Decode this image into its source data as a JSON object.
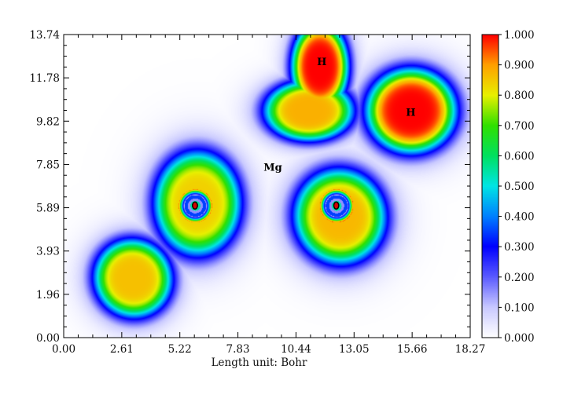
{
  "chart_data": {
    "type": "heatmap",
    "title": "",
    "xlabel": "Length unit: Bohr",
    "ylabel": "",
    "xlim": [
      0.0,
      18.27
    ],
    "ylim": [
      0.0,
      13.74
    ],
    "x_ticks": [
      "0.00",
      "2.61",
      "5.22",
      "7.83",
      "10.44",
      "13.05",
      "15.66",
      "18.27"
    ],
    "y_ticks": [
      "0.00",
      "1.96",
      "3.93",
      "5.89",
      "7.85",
      "9.82",
      "11.78",
      "13.74"
    ],
    "colorbar": {
      "range": [
        0.0,
        1.0
      ],
      "ticks": [
        "0.000",
        "0.100",
        "0.200",
        "0.300",
        "0.400",
        "0.500",
        "0.600",
        "0.700",
        "0.800",
        "0.900",
        "1.000"
      ],
      "colors": [
        "#ffffff",
        "#c8c8ff",
        "#5a5aff",
        "#0000ff",
        "#0080ff",
        "#00e5e5",
        "#00e060",
        "#30e000",
        "#e8f000",
        "#ffa000",
        "#ff0000"
      ]
    },
    "atom_labels": [
      {
        "text": "H",
        "x": 11.6,
        "y": 12.5
      },
      {
        "text": "H",
        "x": 15.6,
        "y": 10.2
      },
      {
        "text": "Mg",
        "x": 9.4,
        "y": 7.7
      }
    ],
    "atoms": [
      {
        "x": 5.9,
        "y": 5.99
      },
      {
        "x": 12.25,
        "y": 5.99
      }
    ],
    "basins": [
      {
        "x": 3.1,
        "y": 2.7,
        "sx": 1.65,
        "sy": 1.7,
        "rot": 0.6,
        "peak": 0.86
      },
      {
        "x": 6.0,
        "y": 6.1,
        "sx": 1.85,
        "sy": 2.25,
        "rot": 0.0,
        "peak": 0.84
      },
      {
        "x": 12.4,
        "y": 5.5,
        "sx": 1.95,
        "sy": 2.05,
        "rot": 0.2,
        "peak": 0.87
      },
      {
        "x": 11.5,
        "y": 12.3,
        "sx": 1.2,
        "sy": 1.9,
        "rot": 0.0,
        "peak": 1.0
      },
      {
        "x": 11.0,
        "y": 10.3,
        "sx": 1.9,
        "sy": 1.3,
        "rot": 0.0,
        "peak": 0.88
      },
      {
        "x": 15.6,
        "y": 10.3,
        "sx": 1.9,
        "sy": 1.8,
        "rot": 0.0,
        "peak": 1.0
      }
    ]
  }
}
